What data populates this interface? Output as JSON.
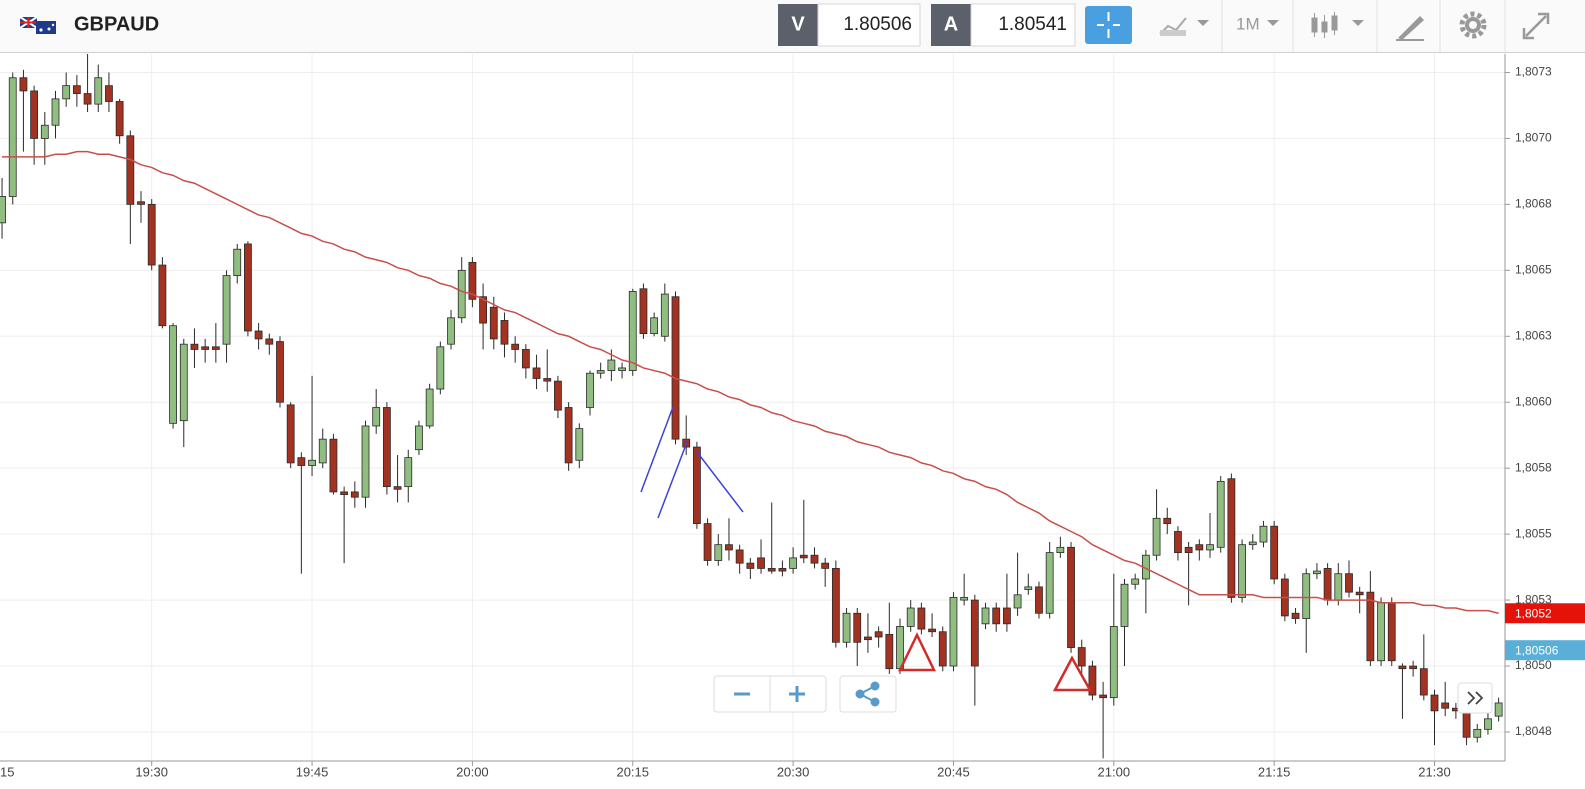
{
  "toolbar": {
    "symbol": "GBPAUD",
    "bid_label": "V",
    "bid": "1.80506",
    "ask_label": "A",
    "ask": "1.80541",
    "timeframe": "1M"
  },
  "chart_data": {
    "type": "candlestick",
    "categories": [
      null,
      null,
      null,
      null,
      null,
      null,
      null,
      null,
      null,
      null,
      null,
      null,
      null,
      null,
      "19:30",
      null,
      null,
      null,
      null,
      null,
      null,
      null,
      null,
      null,
      null,
      null,
      null,
      null,
      null,
      "19:45",
      null,
      null,
      null,
      null,
      null,
      null,
      null,
      null,
      null,
      null,
      null,
      null,
      null,
      null,
      "20:00",
      null,
      null,
      null,
      null,
      null,
      null,
      null,
      null,
      null,
      null,
      null,
      null,
      null,
      null,
      "20:15",
      null,
      null,
      null,
      null,
      null,
      null,
      null,
      null,
      null,
      null,
      null,
      null,
      null,
      null,
      "20:30",
      null,
      null,
      null,
      null,
      null,
      null,
      null,
      null,
      null,
      null,
      null,
      null,
      null,
      null,
      "20:45",
      null,
      null,
      null,
      null,
      null,
      null,
      null,
      null,
      null,
      null,
      null,
      null,
      null,
      null,
      "21:00",
      null,
      null,
      null,
      null,
      null,
      null,
      null,
      null,
      null,
      null,
      null,
      null,
      null,
      null,
      "21:15",
      null,
      null,
      null,
      null,
      null,
      null,
      null,
      null,
      null,
      null,
      null,
      null,
      null,
      null,
      "21:30",
      null,
      null,
      null,
      null,
      null,
      null
    ],
    "open": [
      1.80668,
      1.80678,
      1.80723,
      1.80718,
      1.807,
      1.80705,
      1.80715,
      1.8072,
      1.80717,
      1.80713,
      1.8072,
      1.80714,
      1.80701,
      1.80676,
      1.80675,
      1.80652,
      1.80592,
      1.80593,
      1.80622,
      1.80621,
      1.80621,
      1.80622,
      1.80648,
      1.8066,
      1.80627,
      1.80624,
      1.80623,
      1.80599,
      1.80579,
      1.80576,
      1.80577,
      1.80586,
      1.80566,
      1.80566,
      1.80564,
      1.80591,
      1.80598,
      1.80568,
      1.80568,
      1.80582,
      1.80591,
      1.80605,
      1.80622,
      1.80632,
      1.80653,
      1.8064,
      1.80636,
      1.80631,
      1.80622,
      1.8062,
      1.80613,
      1.80609,
      1.80608,
      1.80598,
      1.80578,
      1.80598,
      1.80611,
      1.80612,
      1.80612,
      1.80612,
      1.80643,
      1.80626,
      1.80625,
      1.8064,
      1.80586,
      1.80583,
      1.80554,
      1.8054,
      1.80546,
      1.80544,
      1.80539,
      1.80541,
      1.80537,
      1.80537,
      1.80537,
      1.80542,
      1.80542,
      1.80539,
      1.80537,
      1.80509,
      1.8052,
      1.80511,
      1.80513,
      1.80512,
      1.80499,
      1.80515,
      1.80522,
      1.80514,
      1.80513,
      1.805,
      1.80525,
      1.80525,
      1.80516,
      1.80522,
      1.80522,
      1.80522,
      1.80529,
      1.8053,
      1.8052,
      1.80543,
      1.80545,
      1.80507,
      1.805,
      1.80489,
      1.80488,
      1.80515,
      1.80531,
      1.80533,
      1.80542,
      1.80556,
      1.80551,
      1.80545,
      1.80546,
      1.80544,
      1.80545,
      1.80571,
      1.80526,
      1.80546,
      1.80547,
      1.80553,
      1.80533,
      1.8052,
      1.80518,
      1.80535,
      1.80537,
      1.80525,
      1.80535,
      1.80528,
      1.80528,
      1.80502,
      1.80524,
      1.805,
      1.805,
      1.80499,
      1.80489,
      1.80486,
      1.80484,
      1.80483,
      1.80473,
      1.80476,
      1.80481
    ],
    "high": [
      1.80685,
      1.80725,
      1.80726,
      1.8072,
      1.8071,
      1.80718,
      1.80725,
      1.80724,
      1.80733,
      1.80728,
      1.80725,
      1.80715,
      1.80703,
      1.8068,
      1.80677,
      1.80655,
      1.8063,
      1.80624,
      1.80628,
      1.80624,
      1.8063,
      1.8065,
      1.8066,
      1.80661,
      1.8063,
      1.80626,
      1.80625,
      1.806,
      1.80581,
      1.8061,
      1.8059,
      1.80588,
      1.80568,
      1.8057,
      1.80593,
      1.80605,
      1.806,
      1.8058,
      1.80582,
      1.80593,
      1.80607,
      1.80623,
      1.80635,
      1.80655,
      1.80655,
      1.80645,
      1.8064,
      1.80634,
      1.80625,
      1.80622,
      1.80618,
      1.8062,
      1.8061,
      1.806,
      1.80592,
      1.80612,
      1.80615,
      1.8062,
      1.80615,
      1.80643,
      1.80645,
      1.80634,
      1.80645,
      1.80642,
      1.80595,
      1.80585,
      1.80556,
      1.8055,
      1.80556,
      1.80546,
      1.80541,
      1.80548,
      1.80562,
      1.8054,
      1.80545,
      1.80563,
      1.80545,
      1.80541,
      1.8054,
      1.80522,
      1.80522,
      1.8052,
      1.80515,
      1.80524,
      1.80518,
      1.80525,
      1.80524,
      1.8052,
      1.80515,
      1.80528,
      1.80535,
      1.80527,
      1.80524,
      1.80524,
      1.80535,
      1.80543,
      1.80535,
      1.80532,
      1.80547,
      1.80549,
      1.80547,
      1.8051,
      1.80502,
      1.80494,
      1.80535,
      1.80533,
      1.80535,
      1.80544,
      1.80567,
      1.8056,
      1.80553,
      1.80547,
      1.80548,
      1.80558,
      1.80572,
      1.80573,
      1.80548,
      1.8055,
      1.80555,
      1.80555,
      1.80535,
      1.80522,
      1.80537,
      1.80539,
      1.80539,
      1.80539,
      1.8054,
      1.8053,
      1.80536,
      1.80526,
      1.80526,
      1.80501,
      1.80502,
      1.80512,
      1.80491,
      1.80494,
      1.80486,
      1.80485,
      1.80478,
      1.80482,
      1.80488
    ],
    "low": [
      1.80662,
      1.80675,
      1.80695,
      1.8069,
      1.8069,
      1.807,
      1.80712,
      1.80712,
      1.8071,
      1.8071,
      1.8071,
      1.80698,
      1.8066,
      1.80668,
      1.8065,
      1.80628,
      1.8059,
      1.80583,
      1.80613,
      1.80615,
      1.80615,
      1.80615,
      1.80645,
      1.80625,
      1.8062,
      1.80618,
      1.80598,
      1.80575,
      1.80535,
      1.80572,
      1.80575,
      1.80565,
      1.80539,
      1.8056,
      1.8056,
      1.80588,
      1.80565,
      1.80562,
      1.80562,
      1.8058,
      1.8059,
      1.80603,
      1.8062,
      1.8063,
      1.80636,
      1.8062,
      1.8062,
      1.80617,
      1.80615,
      1.80609,
      1.80605,
      1.80604,
      1.80594,
      1.80574,
      1.80575,
      1.80595,
      1.80609,
      1.80608,
      1.80609,
      1.8061,
      1.80624,
      1.80625,
      1.80623,
      1.80584,
      1.8058,
      1.80552,
      1.80538,
      1.80538,
      1.8054,
      1.80535,
      1.80533,
      1.80535,
      1.80535,
      1.80534,
      1.80535,
      1.80539,
      1.80537,
      1.8053,
      1.80507,
      1.80507,
      1.805,
      1.80505,
      1.80507,
      1.80497,
      1.80497,
      1.80513,
      1.80512,
      1.80511,
      1.80498,
      1.80498,
      1.80523,
      1.80485,
      1.80514,
      1.80513,
      1.80513,
      1.80519,
      1.80527,
      1.80518,
      1.80518,
      1.80541,
      1.80505,
      1.80497,
      1.80487,
      1.80465,
      1.80485,
      1.805,
      1.80529,
      1.8052,
      1.8054,
      1.8055,
      1.8054,
      1.80523,
      1.8054,
      1.80541,
      1.80543,
      1.80524,
      1.80524,
      1.80544,
      1.80545,
      1.80531,
      1.80517,
      1.80516,
      1.80505,
      1.80533,
      1.80523,
      1.80523,
      1.80526,
      1.8052,
      1.805,
      1.805,
      1.805,
      1.8048,
      1.80496,
      1.80487,
      1.8047,
      1.80481,
      1.8048,
      1.8047,
      1.80471,
      1.80474,
      1.80479
    ],
    "close": [
      1.80678,
      1.80723,
      1.80718,
      1.807,
      1.80705,
      1.80715,
      1.8072,
      1.80717,
      1.80713,
      1.80723,
      1.80714,
      1.80701,
      1.80675,
      1.80675,
      1.80652,
      1.80629,
      1.80629,
      1.80622,
      1.8062,
      1.8062,
      1.8062,
      1.80648,
      1.80658,
      1.80627,
      1.80624,
      1.80622,
      1.806,
      1.80577,
      1.80576,
      1.80578,
      1.80586,
      1.80566,
      1.80565,
      1.80564,
      1.80591,
      1.80598,
      1.80568,
      1.80567,
      1.80579,
      1.80591,
      1.80605,
      1.80621,
      1.80632,
      1.8065,
      1.80639,
      1.8063,
      1.80624,
      1.80622,
      1.8062,
      1.80613,
      1.80609,
      1.80608,
      1.80597,
      1.80577,
      1.8059,
      1.80611,
      1.80612,
      1.80616,
      1.80613,
      1.80642,
      1.80626,
      1.80632,
      1.80641,
      1.80586,
      1.80583,
      1.80554,
      1.8054,
      1.80546,
      1.80544,
      1.80539,
      1.80537,
      1.80537,
      1.80536,
      1.80536,
      1.80541,
      1.80541,
      1.80539,
      1.80537,
      1.80509,
      1.8052,
      1.80509,
      1.8051,
      1.80511,
      1.80499,
      1.80515,
      1.80522,
      1.80514,
      1.80513,
      1.805,
      1.80526,
      1.80526,
      1.805,
      1.80522,
      1.80516,
      1.80516,
      1.80527,
      1.8053,
      1.8052,
      1.80543,
      1.80545,
      1.80507,
      1.805,
      1.80489,
      1.80488,
      1.80515,
      1.80531,
      1.80533,
      1.80542,
      1.80556,
      1.80554,
      1.80543,
      1.80543,
      1.80544,
      1.80546,
      1.8057,
      1.80526,
      1.80546,
      1.80547,
      1.80553,
      1.80533,
      1.80519,
      1.80518,
      1.80535,
      1.80536,
      1.80525,
      1.80535,
      1.80528,
      1.80527,
      1.80502,
      1.80524,
      1.80502,
      1.80499,
      1.80499,
      1.80489,
      1.80483,
      1.80484,
      1.80483,
      1.80473,
      1.80476,
      1.8048,
      1.80486
    ],
    "colors": {
      "up": "#90be80",
      "down": "#a33320",
      "outline": "#2a2a2a"
    },
    "ma": {
      "color": "#c8504a",
      "values": [
        1.80693,
        1.80693,
        1.80693,
        1.80693,
        1.80693,
        1.80694,
        1.80694,
        1.80695,
        1.80695,
        1.80694,
        1.80694,
        1.80693,
        1.80692,
        1.8069,
        1.80689,
        1.80687,
        1.80686,
        1.80684,
        1.80683,
        1.80681,
        1.80679,
        1.80677,
        1.80675,
        1.80673,
        1.80671,
        1.8067,
        1.80668,
        1.80666,
        1.80664,
        1.80663,
        1.80661,
        1.8066,
        1.80658,
        1.80657,
        1.80655,
        1.80654,
        1.80653,
        1.80651,
        1.8065,
        1.80648,
        1.80647,
        1.80645,
        1.80644,
        1.80642,
        1.80641,
        1.80639,
        1.80637,
        1.80635,
        1.80634,
        1.80632,
        1.8063,
        1.80628,
        1.80626,
        1.80625,
        1.80623,
        1.80621,
        1.8062,
        1.80618,
        1.80616,
        1.80615,
        1.80613,
        1.80612,
        1.80611,
        1.80609,
        1.80608,
        1.80607,
        1.80605,
        1.80604,
        1.80602,
        1.80601,
        1.80599,
        1.80598,
        1.80596,
        1.80595,
        1.80593,
        1.80592,
        1.80591,
        1.80589,
        1.80588,
        1.80587,
        1.80585,
        1.80584,
        1.80583,
        1.80581,
        1.8058,
        1.80579,
        1.80577,
        1.80576,
        1.80574,
        1.80573,
        1.80571,
        1.8057,
        1.80568,
        1.80567,
        1.80565,
        1.80562,
        1.8056,
        1.80558,
        1.80555,
        1.80553,
        1.80551,
        1.80549,
        1.80546,
        1.80544,
        1.80542,
        1.8054,
        1.80539,
        1.80537,
        1.80535,
        1.80533,
        1.80531,
        1.80529,
        1.80527,
        1.80527,
        1.80527,
        1.80527,
        1.80527,
        1.80527,
        1.80526,
        1.80526,
        1.80526,
        1.80526,
        1.80526,
        1.80526,
        1.80525,
        1.80525,
        1.80525,
        1.80525,
        1.80525,
        1.80524,
        1.80524,
        1.80524,
        1.80524,
        1.80523,
        1.80523,
        1.80522,
        1.80522,
        1.80521,
        1.80521,
        1.80521,
        1.8052
      ]
    },
    "ylim": [
      1.80464,
      1.80732
    ],
    "yticks": [
      {
        "value": 1.80725,
        "label": "1,8073"
      },
      {
        "value": 1.807,
        "label": "1,8070"
      },
      {
        "value": 1.80675,
        "label": "1,8068"
      },
      {
        "value": 1.8065,
        "label": "1,8065"
      },
      {
        "value": 1.80625,
        "label": "1,8063"
      },
      {
        "value": 1.806,
        "label": "1,8060"
      },
      {
        "value": 1.80575,
        "label": "1,8058"
      },
      {
        "value": 1.8055,
        "label": "1,8055"
      },
      {
        "value": 1.80525,
        "label": "1,8053"
      },
      {
        "value": 1.805,
        "label": "1,8050"
      },
      {
        "value": 1.80475,
        "label": "1,8048"
      }
    ],
    "grid": true,
    "price_labels": [
      {
        "value": 1.8052,
        "label": "1,8052",
        "color": "#e5120a"
      },
      {
        "value": 1.80506,
        "label": "1,80506",
        "color": "#5aafd8"
      }
    ]
  }
}
